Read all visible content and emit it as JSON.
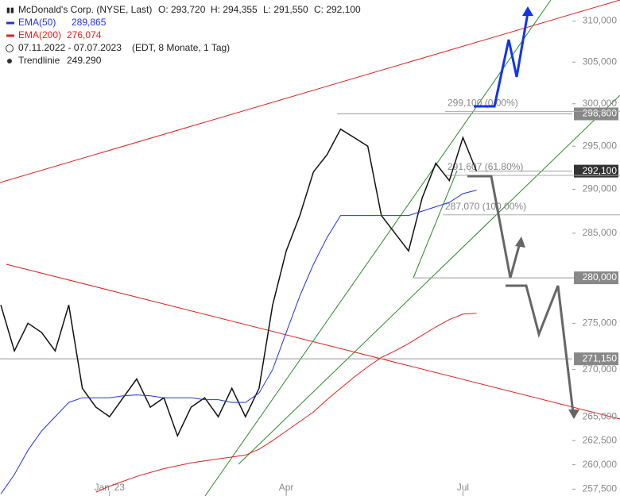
{
  "chart_data": {
    "type": "line",
    "header": {
      "title": "McDonald's Corp. (NYSE, Last)",
      "open": "O: 293,720",
      "high": "H: 294,355",
      "low": "L: 291,550",
      "close": "C: 292,100",
      "range": "07.11.2022 - 07.07.2023",
      "range_note": "(EDT, 8 Monate, 1 Tag)",
      "trendline_name": "Trendlinie",
      "trendline_value": "249.290",
      "ema50_value": "289,865",
      "ema200_value": "276,074"
    },
    "categories": [
      null,
      null,
      null,
      null,
      null,
      null,
      null,
      null,
      "Jan '23",
      null,
      null,
      null,
      null,
      null,
      null,
      null,
      null,
      null,
      null,
      null,
      null,
      "Apr",
      null,
      null,
      null,
      null,
      null,
      null,
      null,
      null,
      null,
      null,
      null,
      null,
      "Jul",
      null,
      null,
      null,
      null,
      null,
      null,
      null,
      null,
      null,
      null,
      null
    ],
    "series": [
      {
        "name": "McDonald's Corp.",
        "color": "#111111",
        "values": [
          277,
          272,
          275,
          274,
          272,
          277,
          268,
          266,
          265,
          267,
          269,
          266,
          267,
          263,
          266,
          267,
          265,
          268,
          265,
          268,
          277,
          283,
          287,
          292,
          294,
          297,
          296,
          295,
          287,
          285,
          283,
          289,
          293,
          291,
          296,
          292.1,
          null,
          null,
          null,
          null,
          null,
          null,
          null,
          null,
          null,
          null
        ]
      },
      {
        "name": "EMA(50)",
        "color": "#2233dd",
        "values": [
          257,
          259,
          261.5,
          263.5,
          265,
          266.5,
          267,
          267,
          267,
          267.2,
          267.3,
          267.2,
          267,
          267,
          267,
          266.8,
          266.8,
          266.5,
          266.5,
          267.5,
          270,
          274,
          278,
          281.5,
          284.5,
          287,
          287,
          287,
          287,
          287,
          287,
          287.5,
          288,
          288.5,
          289.5,
          289.9,
          null,
          null,
          null,
          null,
          null,
          null,
          null,
          null,
          null,
          null
        ]
      },
      {
        "name": "EMA(200)",
        "color": "#dd2222",
        "values": [
          null,
          null,
          null,
          null,
          null,
          null,
          null,
          257.2,
          257.8,
          258.3,
          258.8,
          259.2,
          259.6,
          259.9,
          260.2,
          260.4,
          260.6,
          260.8,
          261,
          261.6,
          262.5,
          263.5,
          264.5,
          265.5,
          266.8,
          268,
          269.2,
          270.3,
          271.3,
          272,
          272.8,
          273.7,
          274.6,
          275.4,
          276,
          276.1,
          null,
          null,
          null,
          null,
          null,
          null,
          null,
          null,
          null,
          null
        ]
      }
    ],
    "log_scale": true,
    "ylim": [
      256.8,
      312.6
    ],
    "yticks": [
      {
        "value": 257.5,
        "label": "257,500"
      },
      {
        "value": 260,
        "label": "260,000"
      },
      {
        "value": 262.5,
        "label": "262,500"
      },
      {
        "value": 265,
        "label": "265,000"
      },
      {
        "value": 270,
        "label": "270,000"
      },
      {
        "value": 275,
        "label": "275,000"
      },
      {
        "value": 280,
        "label": "280,000"
      },
      {
        "value": 285,
        "label": "285,000"
      },
      {
        "value": 290,
        "label": "290,000"
      },
      {
        "value": 295,
        "label": "295,000"
      },
      {
        "value": 300,
        "label": "300,000"
      },
      {
        "value": 305,
        "label": "305,000"
      },
      {
        "value": 310,
        "label": "310,000"
      }
    ],
    "levels": [
      {
        "value": 298.8,
        "label": "298,800"
      },
      {
        "value": 292.1,
        "label": "292,100"
      },
      {
        "value": 280,
        "label": "280,000"
      },
      {
        "value": 271.15,
        "label": "271,150"
      }
    ],
    "annotations": [
      {
        "value": 299.1,
        "label": "299,100 (0.00%)"
      },
      {
        "value": 291.607,
        "label": "291,607 (61.80%)"
      },
      {
        "value": 287.07,
        "label": "287,070 (100.00%)"
      }
    ]
  }
}
